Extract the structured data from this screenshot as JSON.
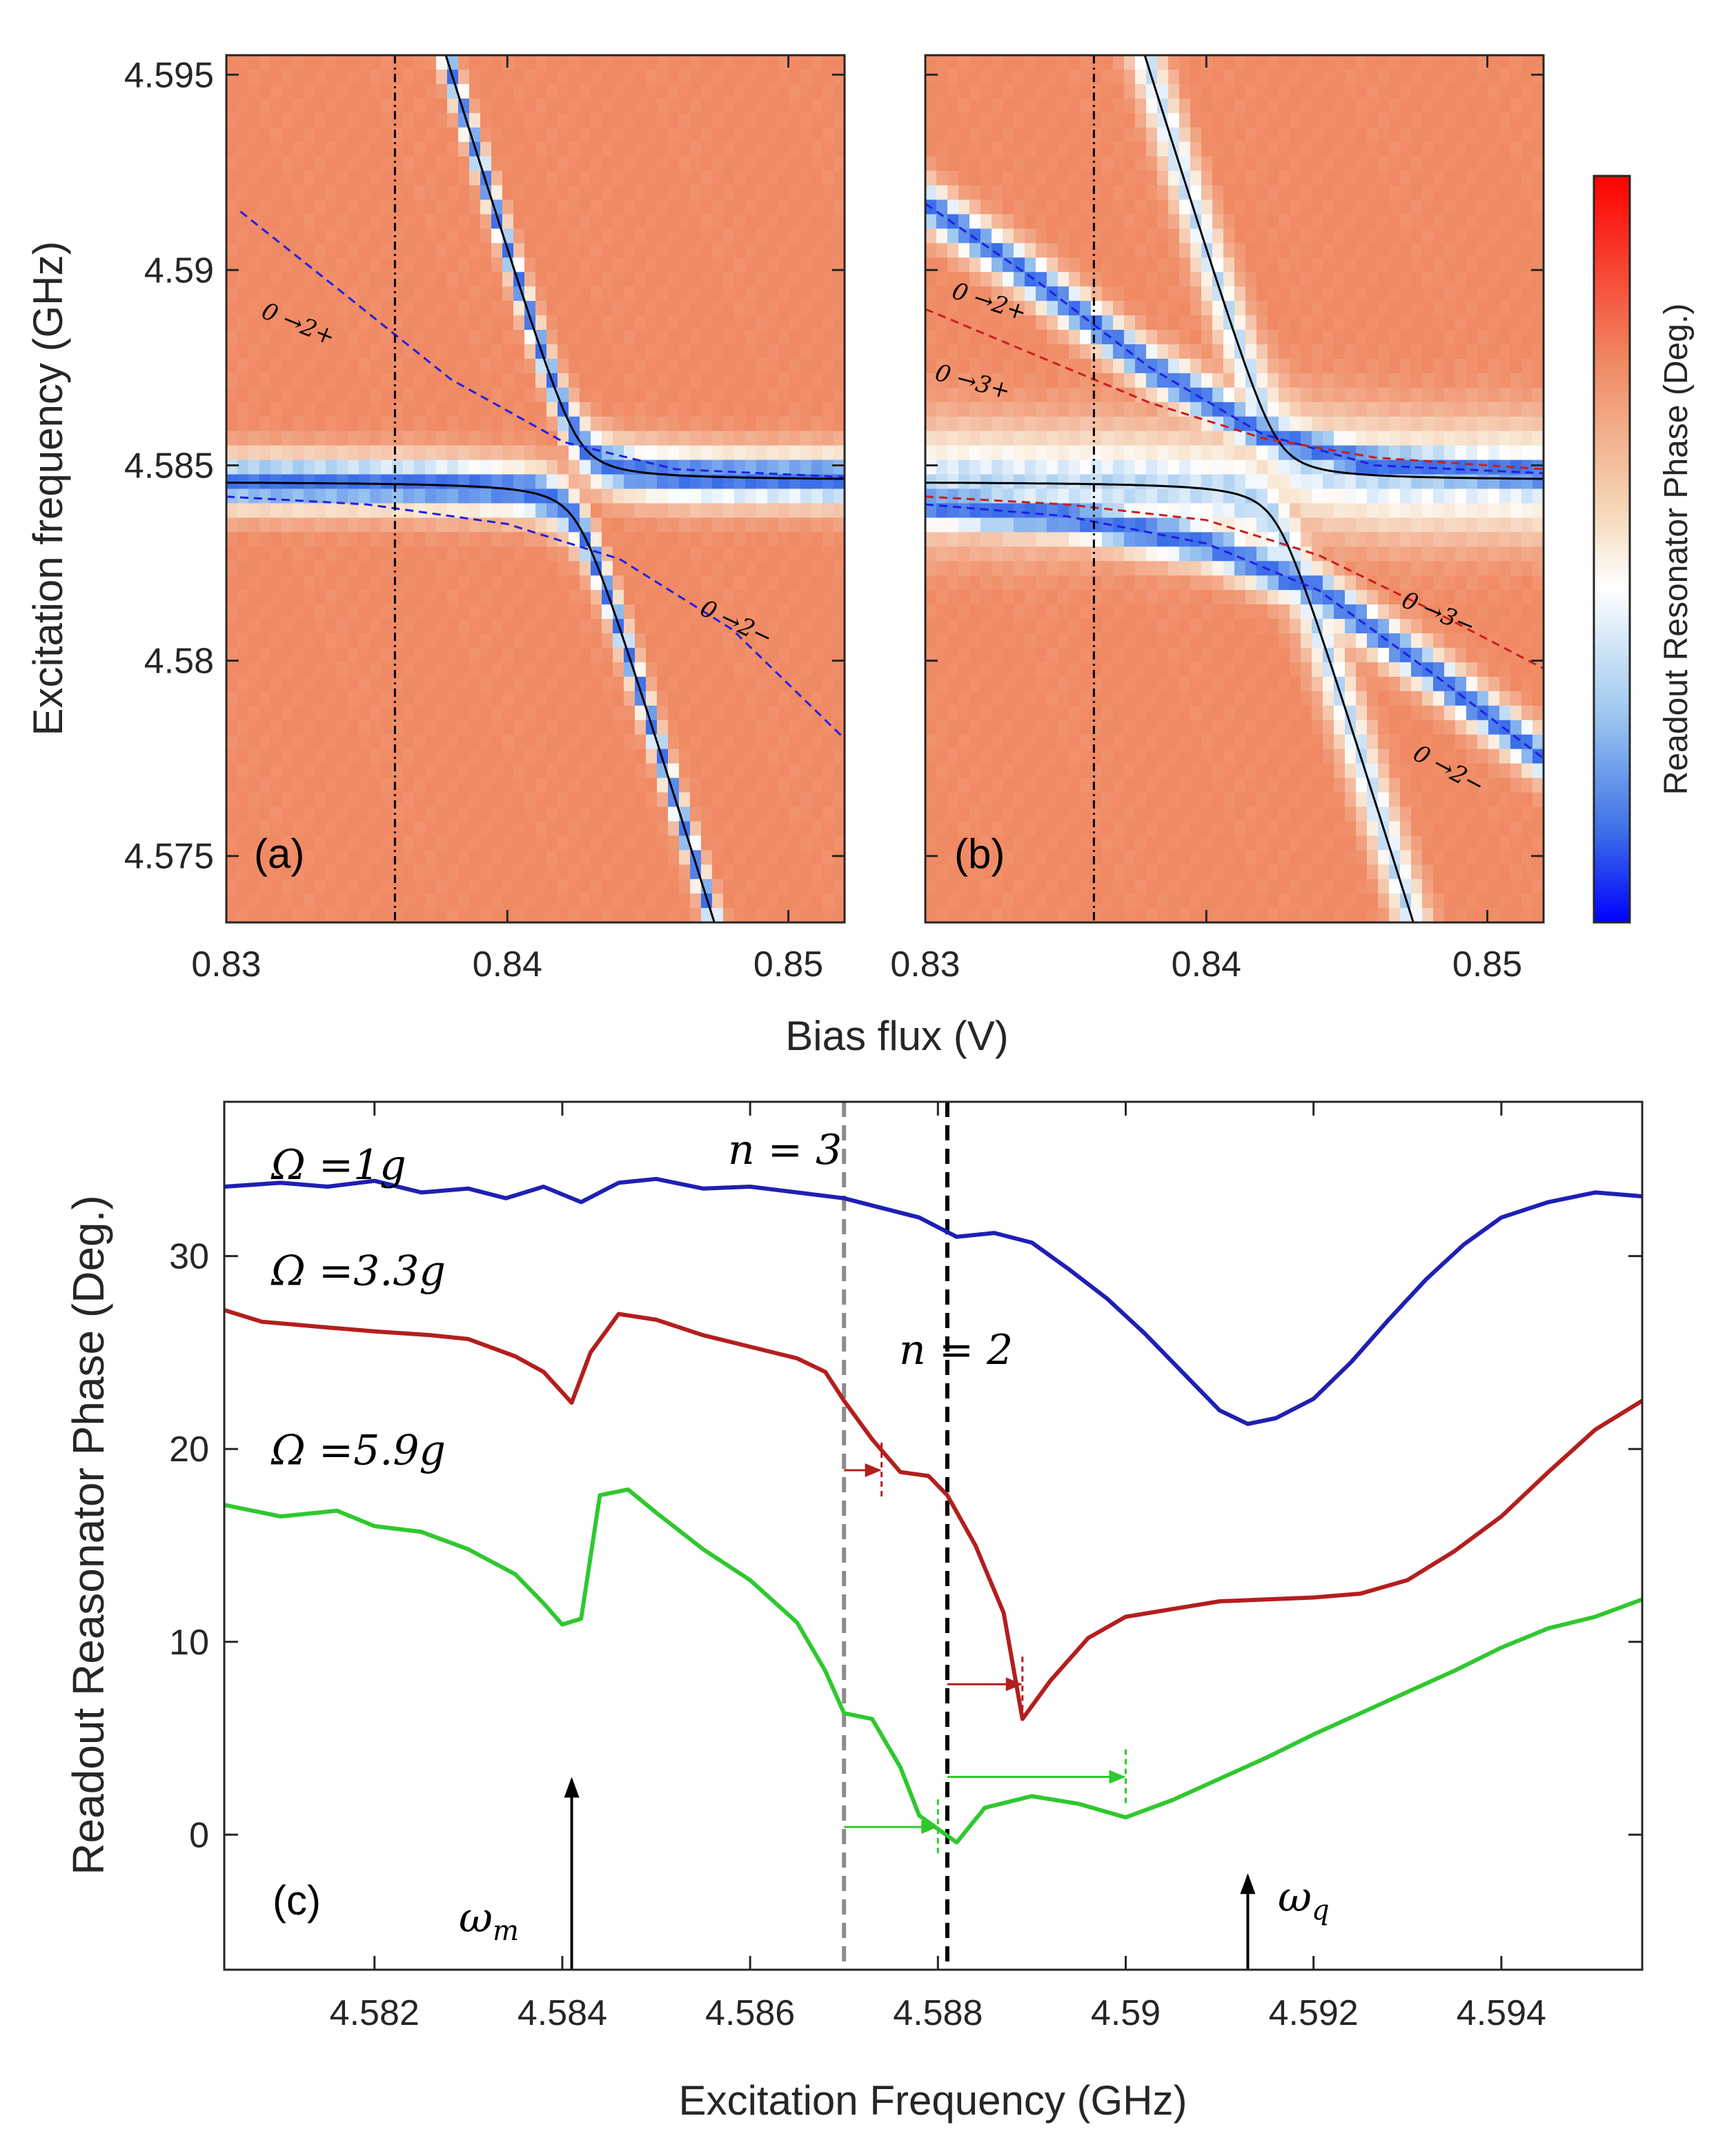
{
  "chart_data": [
    {
      "panel": "a",
      "type": "heatmap",
      "panel_label": "(a)",
      "xlabel": "Bias flux (V)",
      "ylabel": "Excitation frequency (GHz)",
      "xlim": [
        0.83,
        0.852
      ],
      "ylim": [
        4.5733,
        4.5955
      ],
      "xticks": [
        "0.83",
        "0.84",
        "0.85"
      ],
      "yticks": [
        "4.575",
        "4.58",
        "4.585",
        "4.59",
        "4.595"
      ],
      "vline_x": 0.836,
      "anticrossing": {
        "x0": 0.8425,
        "y0": 4.5846,
        "slope_ghz_per_v": -2.3,
        "g": 0.0011
      },
      "branches": [
        {
          "label": "0 →2+",
          "color": "#2020e0",
          "points": [
            [
              0.8305,
              4.5915
            ],
            [
              0.834,
              4.5895
            ],
            [
              0.838,
              4.5872
            ],
            [
              0.842,
              4.5856
            ],
            [
              0.846,
              4.5849
            ],
            [
              0.852,
              4.5847
            ]
          ]
        },
        {
          "label": "0 →2−",
          "color": "#2020e0",
          "points": [
            [
              0.83,
              4.5842
            ],
            [
              0.835,
              4.584
            ],
            [
              0.84,
              4.5835
            ],
            [
              0.844,
              4.5826
            ],
            [
              0.848,
              4.5808
            ],
            [
              0.852,
              4.578
            ]
          ]
        }
      ],
      "branch_labels": [
        {
          "text": "0 →2+",
          "x": 0.8312,
          "y": 4.5888,
          "angle": 22
        },
        {
          "text": "0 →2−",
          "x": 0.8468,
          "y": 4.5812,
          "angle": 25
        }
      ]
    },
    {
      "panel": "b",
      "type": "heatmap",
      "panel_label": "(b)",
      "xlim": [
        0.83,
        0.852
      ],
      "ylim": [
        4.5733,
        4.5955
      ],
      "xticks": [
        "0.83",
        "0.84",
        "0.85"
      ],
      "vline_x": 0.836,
      "anticrossing": {
        "x0": 0.8425,
        "y0": 4.5846,
        "slope_ghz_per_v": -2.3,
        "g": 0.0011
      },
      "branches": [
        {
          "label": "0 →2+",
          "color": "#2020e0",
          "points": [
            [
              0.83,
              4.5917
            ],
            [
              0.834,
              4.5897
            ],
            [
              0.838,
              4.5875
            ],
            [
              0.842,
              4.5858
            ],
            [
              0.846,
              4.585
            ],
            [
              0.852,
              4.5848
            ]
          ]
        },
        {
          "label": "0 →3+",
          "color": "#c81e1e",
          "points": [
            [
              0.83,
              4.589
            ],
            [
              0.834,
              4.5878
            ],
            [
              0.838,
              4.5866
            ],
            [
              0.842,
              4.5857
            ],
            [
              0.846,
              4.5852
            ],
            [
              0.852,
              4.5849
            ]
          ]
        },
        {
          "label": "0 →2−",
          "color": "#2020e0",
          "points": [
            [
              0.83,
              4.584
            ],
            [
              0.835,
              4.5837
            ],
            [
              0.84,
              4.583
            ],
            [
              0.844,
              4.5818
            ],
            [
              0.848,
              4.5797
            ],
            [
              0.852,
              4.5775
            ]
          ]
        },
        {
          "label": "0 →3−",
          "color": "#c81e1e",
          "points": [
            [
              0.83,
              4.5842
            ],
            [
              0.835,
              4.584
            ],
            [
              0.84,
              4.5836
            ],
            [
              0.844,
              4.5827
            ],
            [
              0.848,
              4.5813
            ],
            [
              0.852,
              4.5798
            ]
          ]
        }
      ],
      "branch_labels": [
        {
          "text": "0 →2+",
          "x": 0.8309,
          "y": 4.5893,
          "angle": 18
        },
        {
          "text": "0 →3+",
          "x": 0.8303,
          "y": 4.5872,
          "angle": 15
        },
        {
          "text": "0 →3−",
          "x": 0.8469,
          "y": 4.5814,
          "angle": 22
        },
        {
          "text": "0 →2−",
          "x": 0.8473,
          "y": 4.5775,
          "angle": 28
        }
      ]
    },
    {
      "panel": "c",
      "type": "line",
      "panel_label": "(c)",
      "xlabel": "Excitation Frequency (GHz)",
      "ylabel": "Readout Reasonator Phase (Deg.)",
      "xlim": [
        4.5804,
        4.5955
      ],
      "ylim": [
        -7,
        38
      ],
      "xticks": [
        "4.582",
        "4.584",
        "4.586",
        "4.588",
        "4.59",
        "4.592",
        "4.594"
      ],
      "yticks": [
        "0",
        "10",
        "20",
        "30"
      ],
      "vlines": [
        {
          "x": 4.587,
          "color": "#8c8c8c",
          "label": "n = 3"
        },
        {
          "x": 4.5881,
          "color": "#000000",
          "label": "n = 2"
        }
      ],
      "series": [
        {
          "name": "Ω =1g",
          "color": "#1f1fb4",
          "points": [
            [
              4.5804,
              33.6
            ],
            [
              4.581,
              33.8
            ],
            [
              4.5815,
              33.6
            ],
            [
              4.582,
              33.9
            ],
            [
              4.5825,
              33.3
            ],
            [
              4.583,
              33.5
            ],
            [
              4.5834,
              33.0
            ],
            [
              4.5838,
              33.6
            ],
            [
              4.5842,
              32.8
            ],
            [
              4.5846,
              33.8
            ],
            [
              4.585,
              34.0
            ],
            [
              4.5855,
              33.5
            ],
            [
              4.586,
              33.6
            ],
            [
              4.5865,
              33.3
            ],
            [
              4.587,
              33.0
            ],
            [
              4.5874,
              32.5
            ],
            [
              4.5878,
              32.0
            ],
            [
              4.5882,
              31.0
            ],
            [
              4.5886,
              31.2
            ],
            [
              4.589,
              30.7
            ],
            [
              4.5894,
              29.3
            ],
            [
              4.5898,
              27.8
            ],
            [
              4.5902,
              26.0
            ],
            [
              4.5906,
              24.0
            ],
            [
              4.591,
              22.0
            ],
            [
              4.5913,
              21.3
            ],
            [
              4.5916,
              21.6
            ],
            [
              4.592,
              22.6
            ],
            [
              4.5924,
              24.5
            ],
            [
              4.5928,
              26.7
            ],
            [
              4.5932,
              28.8
            ],
            [
              4.5936,
              30.6
            ],
            [
              4.594,
              32.0
            ],
            [
              4.5945,
              32.8
            ],
            [
              4.595,
              33.3
            ],
            [
              4.5955,
              33.1
            ]
          ]
        },
        {
          "name": "Ω =3.3g",
          "color": "#b41e1e",
          "points": [
            [
              4.5804,
              27.2
            ],
            [
              4.5808,
              26.6
            ],
            [
              4.5815,
              26.3
            ],
            [
              4.582,
              26.1
            ],
            [
              4.5826,
              25.9
            ],
            [
              4.583,
              25.7
            ],
            [
              4.5835,
              24.8
            ],
            [
              4.5838,
              24.0
            ],
            [
              4.5841,
              22.4
            ],
            [
              4.5843,
              25.0
            ],
            [
              4.5846,
              27.0
            ],
            [
              4.585,
              26.7
            ],
            [
              4.5855,
              25.9
            ],
            [
              4.586,
              25.3
            ],
            [
              4.5865,
              24.7
            ],
            [
              4.5868,
              24.0
            ],
            [
              4.587,
              22.5
            ],
            [
              4.5873,
              20.5
            ],
            [
              4.5876,
              18.8
            ],
            [
              4.5879,
              18.6
            ],
            [
              4.5881,
              17.6
            ],
            [
              4.5884,
              15.0
            ],
            [
              4.5887,
              11.5
            ],
            [
              4.5889,
              6.0
            ],
            [
              4.5892,
              8.0
            ],
            [
              4.5896,
              10.2
            ],
            [
              4.59,
              11.3
            ],
            [
              4.5905,
              11.7
            ],
            [
              4.591,
              12.1
            ],
            [
              4.5915,
              12.2
            ],
            [
              4.592,
              12.3
            ],
            [
              4.5925,
              12.5
            ],
            [
              4.593,
              13.2
            ],
            [
              4.5935,
              14.7
            ],
            [
              4.594,
              16.5
            ],
            [
              4.5945,
              18.8
            ],
            [
              4.595,
              21.0
            ],
            [
              4.5955,
              22.5
            ]
          ]
        },
        {
          "name": "Ω =5.9g",
          "color": "#2fc82f",
          "points": [
            [
              4.5804,
              17.1
            ],
            [
              4.581,
              16.5
            ],
            [
              4.5816,
              16.8
            ],
            [
              4.582,
              16.0
            ],
            [
              4.5825,
              15.7
            ],
            [
              4.583,
              14.8
            ],
            [
              4.5835,
              13.5
            ],
            [
              4.5838,
              12.0
            ],
            [
              4.584,
              10.9
            ],
            [
              4.5842,
              11.2
            ],
            [
              4.5844,
              17.6
            ],
            [
              4.5847,
              17.9
            ],
            [
              4.585,
              16.7
            ],
            [
              4.5855,
              14.8
            ],
            [
              4.586,
              13.2
            ],
            [
              4.5865,
              11.0
            ],
            [
              4.5868,
              8.5
            ],
            [
              4.587,
              6.3
            ],
            [
              4.5873,
              6.0
            ],
            [
              4.5876,
              3.5
            ],
            [
              4.5878,
              1.0
            ],
            [
              4.588,
              0.3
            ],
            [
              4.5882,
              -0.4
            ],
            [
              4.5885,
              1.4
            ],
            [
              4.589,
              2.0
            ],
            [
              4.5895,
              1.6
            ],
            [
              4.59,
              0.9
            ],
            [
              4.5905,
              1.8
            ],
            [
              4.591,
              2.9
            ],
            [
              4.5915,
              4.0
            ],
            [
              4.592,
              5.2
            ],
            [
              4.5925,
              6.3
            ],
            [
              4.593,
              7.4
            ],
            [
              4.5935,
              8.5
            ],
            [
              4.594,
              9.7
            ],
            [
              4.5945,
              10.7
            ],
            [
              4.595,
              11.3
            ],
            [
              4.5955,
              12.2
            ]
          ]
        }
      ],
      "series_labels": [
        {
          "text": "Ω =1g",
          "x": 4.5809,
          "y": 34.0
        },
        {
          "text": "Ω =3.3g",
          "x": 4.5809,
          "y": 28.5
        },
        {
          "text": "Ω =5.9g",
          "x": 4.5809,
          "y": 19.2
        }
      ],
      "arrows_horizontal": [
        {
          "x1": 4.587,
          "x2": 4.5874,
          "y": 18.9,
          "color": "#b41e1e",
          "tick_x": 4.5874
        },
        {
          "x1": 4.5881,
          "x2": 4.5889,
          "y": 7.8,
          "color": "#b41e1e",
          "tick_x": 4.5889
        },
        {
          "x1": 4.587,
          "x2": 4.588,
          "y": 0.4,
          "color": "#2fc82f",
          "tick_x": 4.588
        },
        {
          "x1": 4.5881,
          "x2": 4.59,
          "y": 3.0,
          "color": "#2fc82f",
          "tick_x": 4.59
        }
      ],
      "markers": [
        {
          "label": "ω_m",
          "x": 4.5841,
          "y_top": 3.0
        },
        {
          "label": "ω_q",
          "x": 4.5913,
          "y_top": -2.0
        }
      ]
    }
  ],
  "colorbar": {
    "label": "Readout Resonator Phase (Deg.)",
    "colors": [
      "#ff0000",
      "#f08a64",
      "#f5d8b8",
      "#ffffff",
      "#9ec8ef",
      "#3c6ee8",
      "#0000ff"
    ]
  },
  "annotations": {
    "n3": "n = 3",
    "n2": "n = 2",
    "omega_m": "ω",
    "omega_m_sub": "m",
    "omega_q": "ω",
    "omega_q_sub": "q"
  }
}
